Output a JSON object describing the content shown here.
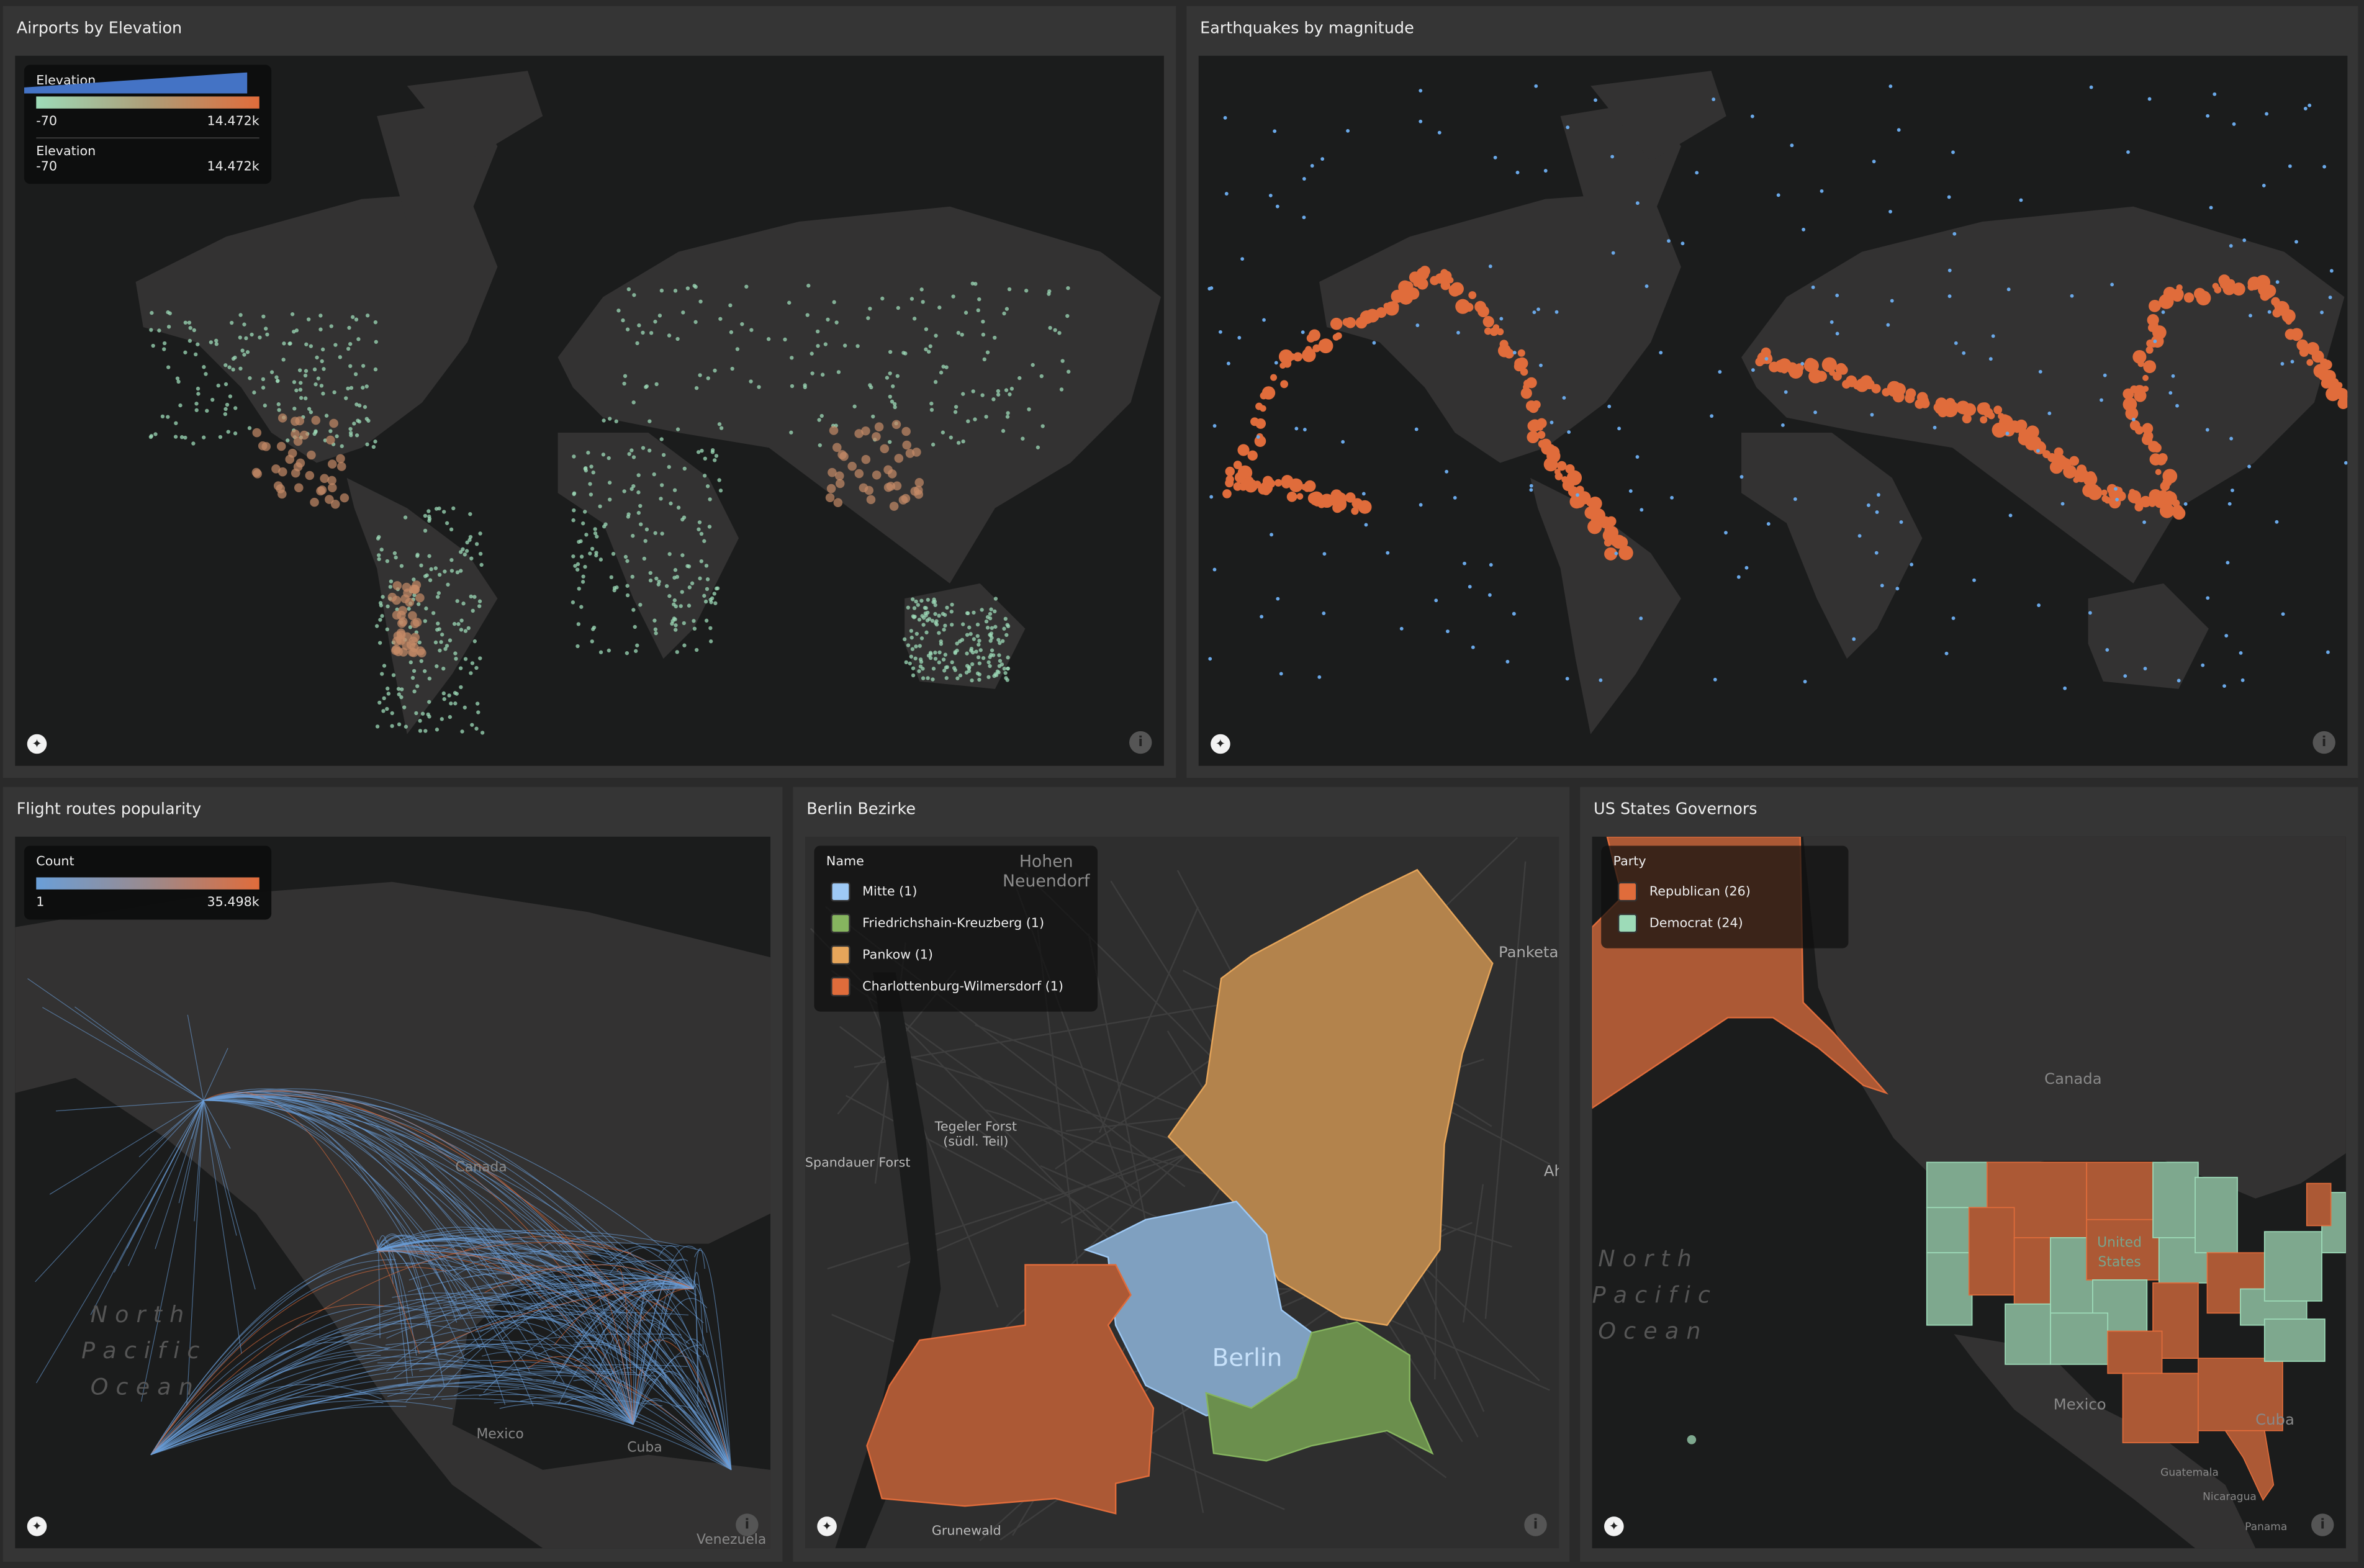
{
  "colors": {
    "panel_bg": "#353535",
    "map_bg": "#1b1c1c",
    "land": "#333232",
    "orange": "#e06c3b",
    "green": "#9ddbb8",
    "blue": "#4473c5",
    "light_blue": "#9ec9f5",
    "pankow": "#e6a55a",
    "fk": "#86b55f"
  },
  "panels": [
    {
      "title": "Airports by Elevation",
      "legend": [
        {
          "title": "Elevation",
          "type": "color-gradient",
          "min": "-70",
          "max": "14.472k",
          "colors": [
            "#9ddbb8",
            "#e06c3b"
          ]
        },
        {
          "title": "Elevation",
          "type": "size-ramp",
          "min": "-70",
          "max": "14.472k",
          "color": "#4473c5"
        }
      ]
    },
    {
      "title": "Earthquakes by magnitude"
    },
    {
      "title": "Flight routes popularity",
      "legend": {
        "title": "Count",
        "min": "1",
        "max": "35.498k",
        "colors": [
          "#6a9fd8",
          "#e06c3b"
        ]
      },
      "labels": {
        "canada": "Canada",
        "mexico": "Mexico",
        "cuba": "Cuba",
        "venezuela": "Venezuela",
        "ocean": [
          "North",
          "Pacific",
          "Ocean"
        ]
      }
    },
    {
      "title": "Berlin Bezirke",
      "legend": {
        "title": "Name",
        "items": [
          {
            "label": "Mitte (1)",
            "color": "#9ec9f5"
          },
          {
            "label": "Friedrichshain-Kreuzberg (1)",
            "color": "#86b55f"
          },
          {
            "label": "Pankow (1)",
            "color": "#e6a55a"
          },
          {
            "label": "Charlottenburg-Wilmersdorf (1)",
            "color": "#e06c3b"
          }
        ]
      },
      "labels": {
        "hohen": "Hohen\nNeuendorf",
        "panketal": "Panketal",
        "tegeler": "Tegeler Forst\n(südl. Teil)",
        "spandauer": "Spandauer Forst",
        "ah": "Ah",
        "berlin": "Berlin",
        "grunewald": "Grunewald"
      }
    },
    {
      "title": "US States Governors",
      "legend": {
        "title": "Party",
        "items": [
          {
            "label": "Republican (26)",
            "color": "#e06c3b"
          },
          {
            "label": "Democrat (24)",
            "color": "#9ddbb8"
          }
        ]
      },
      "labels": {
        "canada": "Canada",
        "united_states": "United\nStates",
        "mexico": "Mexico",
        "cuba": "Cuba",
        "guatemala": "Guatemala",
        "nicaragua": "Nicaragua",
        "panama": "Panama",
        "ocean": [
          "North",
          "Pacific",
          "Ocean"
        ]
      }
    }
  ],
  "icons": {
    "logo": "compass-logo-icon",
    "info": "info-icon"
  }
}
